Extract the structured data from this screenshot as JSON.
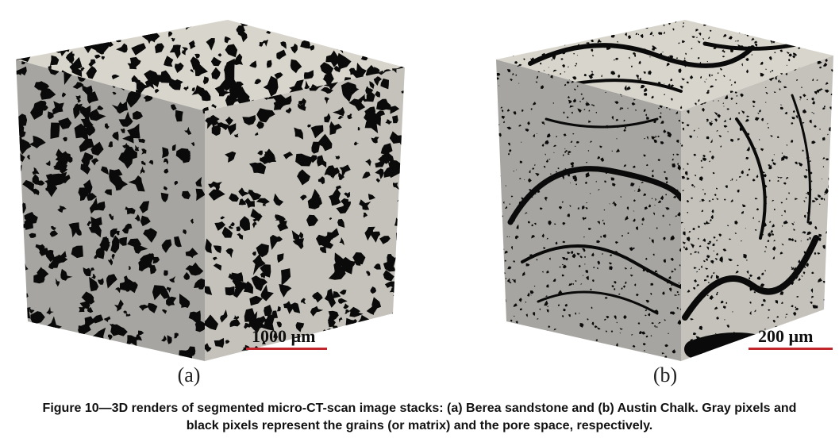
{
  "panels": [
    {
      "id": "a",
      "label": "(a)",
      "scale_text": "1000 µm",
      "pore_style": "sandstone"
    },
    {
      "id": "b",
      "label": "(b)",
      "scale_text": "200 µm",
      "pore_style": "chalk"
    }
  ],
  "colors": {
    "grain_top": "#d8d5cc",
    "grain_left": "#a6a5a1",
    "grain_right": "#c4c2bb",
    "pore": "#0a0a0a",
    "scale_bar": "#c0262c"
  },
  "caption": "Figure 10—3D renders of segmented micro-CT-scan image stacks: (a) Berea sandstone and (b) Austin Chalk. Gray pixels and black pixels represent the grains (or matrix) and the pore space, respectively."
}
